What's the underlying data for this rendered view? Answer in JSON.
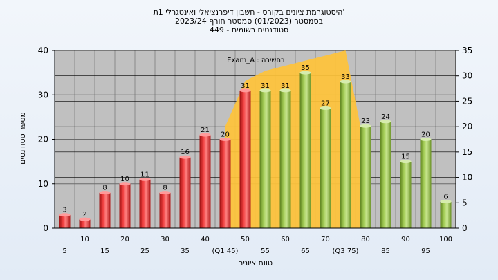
{
  "chart_data": {
    "type": "bar",
    "title_lines": [
      "היסטוגרמת ציונים בקורס - חשבון דיפרנציאלי ואינטגרלי 1ת'",
      "בסמסטר  (01/2023)  סמסטר חורף  2023/24",
      "סטודנטים רשומים - 449"
    ],
    "xlabel": "טווח ציונים",
    "ylabel": "מספר סטודנטים",
    "annotation": "Exam_A : בחשיבה",
    "categories": [
      "5",
      "10",
      "15",
      "20",
      "25",
      "30",
      "35",
      "40",
      "45",
      "50",
      "55",
      "60",
      "65",
      "70",
      "75",
      "80",
      "85",
      "90",
      "95",
      "100"
    ],
    "x_tick_labels": [
      "5",
      "10",
      "15",
      "20",
      "25",
      "30",
      "35",
      "40",
      "(Q1 45)",
      "50",
      "55",
      "60",
      "65",
      "70",
      "(Q3 75)",
      "80",
      "85",
      "90",
      "95",
      "100"
    ],
    "values": [
      3,
      2,
      8,
      10,
      11,
      8,
      16,
      21,
      20,
      31,
      31,
      31,
      35,
      27,
      33,
      23,
      24,
      15,
      20,
      6
    ],
    "bar_colors": [
      "red",
      "red",
      "red",
      "red",
      "red",
      "red",
      "red",
      "red",
      "red",
      "red",
      "green",
      "green",
      "green",
      "green",
      "green",
      "green",
      "green",
      "green",
      "green",
      "green"
    ],
    "area_series": {
      "categories": [
        "45",
        "50",
        "55",
        "60",
        "65",
        "70",
        "75",
        "80"
      ],
      "values": [
        20,
        29,
        31,
        32,
        33,
        34,
        35,
        15
      ]
    },
    "left_axis": {
      "ylim": [
        0,
        40
      ],
      "ticks": [
        0,
        10,
        20,
        30,
        40
      ]
    },
    "right_axis": {
      "ylim": [
        0,
        35
      ],
      "ticks": [
        0,
        5,
        10,
        15,
        20,
        25,
        30,
        35
      ]
    },
    "grid": true,
    "colors": {
      "red_bar": "#e02020",
      "green_bar": "#8fbc3c",
      "area": "#ffc33a",
      "plot_bg": "#c0c0c0"
    }
  }
}
